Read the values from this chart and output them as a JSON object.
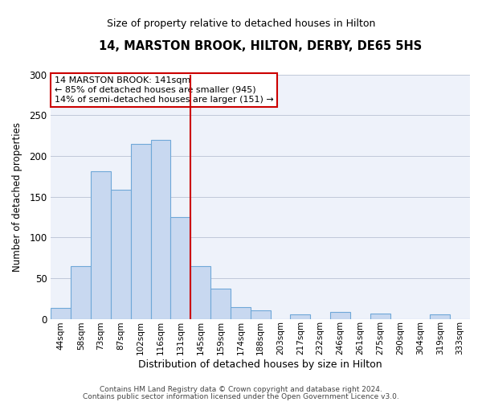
{
  "title": "14, MARSTON BROOK, HILTON, DERBY, DE65 5HS",
  "subtitle": "Size of property relative to detached houses in Hilton",
  "xlabel": "Distribution of detached houses by size in Hilton",
  "ylabel": "Number of detached properties",
  "bar_labels": [
    "44sqm",
    "58sqm",
    "73sqm",
    "87sqm",
    "102sqm",
    "116sqm",
    "131sqm",
    "145sqm",
    "159sqm",
    "174sqm",
    "188sqm",
    "203sqm",
    "217sqm",
    "232sqm",
    "246sqm",
    "261sqm",
    "275sqm",
    "290sqm",
    "304sqm",
    "319sqm",
    "333sqm"
  ],
  "bar_values": [
    13,
    65,
    181,
    158,
    215,
    220,
    125,
    65,
    37,
    14,
    10,
    0,
    5,
    0,
    8,
    0,
    6,
    0,
    0,
    5,
    0
  ],
  "bar_color": "#c8d8f0",
  "bar_edge_color": "#6fa8d8",
  "vline_pos": 6.5,
  "vline_color": "#cc0000",
  "annotation_text": "14 MARSTON BROOK: 141sqm\n← 85% of detached houses are smaller (945)\n14% of semi-detached houses are larger (151) →",
  "annotation_box_color": "#ffffff",
  "annotation_box_edge_color": "#cc0000",
  "ylim": [
    0,
    300
  ],
  "yticks": [
    0,
    50,
    100,
    150,
    200,
    250,
    300
  ],
  "background_color": "#eef2fa",
  "footer1": "Contains HM Land Registry data © Crown copyright and database right 2024.",
  "footer2": "Contains public sector information licensed under the Open Government Licence v3.0."
}
